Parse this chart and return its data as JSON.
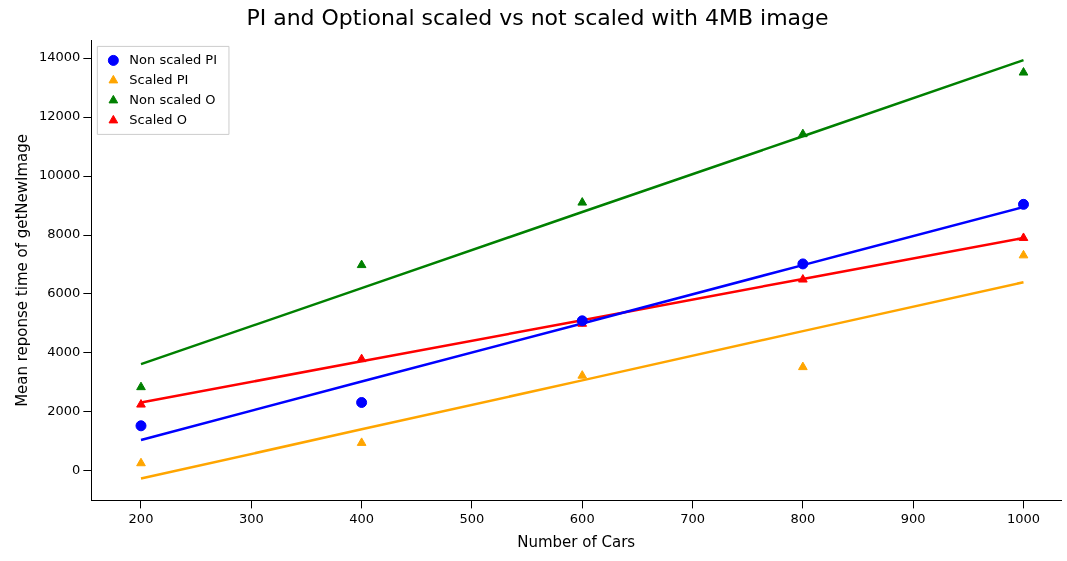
{
  "chart_data": {
    "type": "scatter",
    "title": "PI and Optional scaled vs not scaled with 4MB image",
    "xlabel": "Number of Cars",
    "ylabel": "Mean reponse time of getNewImage",
    "x": [
      200,
      400,
      600,
      800,
      1000
    ],
    "series": [
      {
        "name": "Non scaled PI",
        "color": "#0000ff",
        "marker": "circle",
        "values": [
          1530,
          2320,
          5090,
          7020,
          9040
        ]
      },
      {
        "name": "Scaled PI",
        "color": "#ffa500",
        "marker": "triangle",
        "values": [
          260,
          950,
          3230,
          3520,
          7310
        ]
      },
      {
        "name": "Non scaled O",
        "color": "#008000",
        "marker": "triangle",
        "values": [
          2840,
          6980,
          9100,
          11420,
          13510
        ]
      },
      {
        "name": "Scaled O",
        "color": "#ff0000",
        "marker": "triangle",
        "values": [
          2250,
          3790,
          4990,
          6490,
          7900
        ]
      },
      {
        "type": "line",
        "color": "#0000ff",
        "marker": "none",
        "values": [
          1050,
          3030,
          5000,
          6980,
          8950
        ]
      },
      {
        "type": "line",
        "color": "#ffa500",
        "marker": "none",
        "values": [
          -260,
          1410,
          3070,
          4740,
          6400
        ]
      },
      {
        "type": "line",
        "color": "#008000",
        "marker": "none",
        "values": [
          3620,
          6200,
          8780,
          11350,
          13930
        ]
      },
      {
        "type": "line",
        "color": "#ff0000",
        "marker": "none",
        "values": [
          2320,
          3720,
          5110,
          6510,
          7900
        ]
      }
    ],
    "xlim": [
      155,
      1034
    ],
    "xticks": [
      200,
      300,
      400,
      500,
      600,
      700,
      800,
      900,
      1000
    ],
    "ylim": [
      -1000,
      14600
    ],
    "yticks": [
      0,
      2000,
      4000,
      6000,
      8000,
      10000,
      12000,
      14000
    ],
    "legend": "top left",
    "grid": false
  }
}
